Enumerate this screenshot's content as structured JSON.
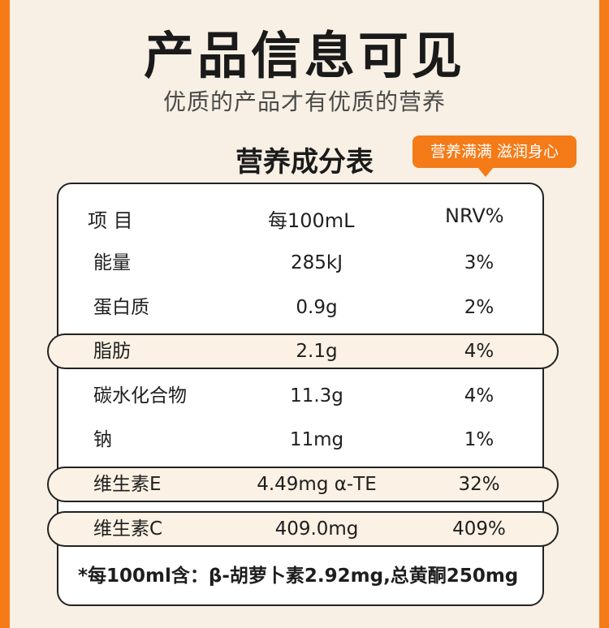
{
  "hero": {
    "title": "产品信息可见",
    "subtitle": "优质的产品才有优质的营养"
  },
  "nutrition_table": {
    "heading": "营养成分表",
    "badge": "营养满满 滋润身心",
    "columns": {
      "item": "项 目",
      "per_amount": "每100mL",
      "nrv": "NRV%"
    },
    "rows": [
      {
        "name": "能量",
        "amount": "285kJ",
        "nrv": "3%",
        "highlighted": false
      },
      {
        "name": "蛋白质",
        "amount": "0.9g",
        "nrv": "2%",
        "highlighted": false
      },
      {
        "name": "脂肪",
        "amount": "2.1g",
        "nrv": "4%",
        "highlighted": true
      },
      {
        "name": "碳水化合物",
        "amount": "11.3g",
        "nrv": "4%",
        "highlighted": false
      },
      {
        "name": "钠",
        "amount": "11mg",
        "nrv": "1%",
        "highlighted": false
      },
      {
        "name": "维生素E",
        "amount": "4.49mg α-TE",
        "nrv": "32%",
        "highlighted": true
      },
      {
        "name": "维生素C",
        "amount": "409.0mg",
        "nrv": "409%",
        "highlighted": true
      }
    ],
    "footnote": "*每100ml含：β-胡萝卜素2.92mg,总黄酮250mg"
  },
  "colors": {
    "accent": "#f47b18",
    "background": "#f8f0e4",
    "highlight_row": "#fbf1e4"
  }
}
